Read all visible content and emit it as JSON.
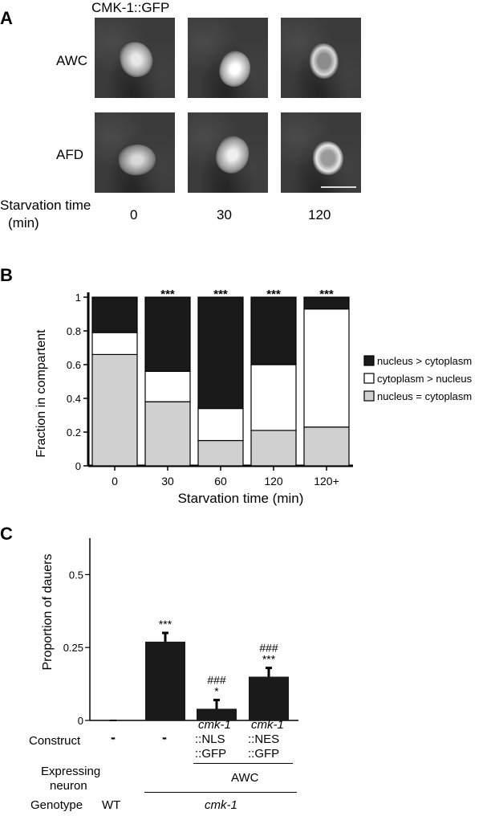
{
  "panel_a": {
    "letter": "A",
    "title": "CMK-1::GFP",
    "row_labels": [
      "AWC",
      "AFD"
    ],
    "time_label_line1": "Starvation time",
    "time_label_line2": "(min)",
    "times": [
      "0",
      "30",
      "120"
    ]
  },
  "panel_b": {
    "letter": "B",
    "chart_data": {
      "type": "bar",
      "stacked": true,
      "ylabel": "Fraction in compartent",
      "xlabel": "Starvation time (min)",
      "ylim": [
        0,
        1
      ],
      "yticks": [
        "0",
        "0.2",
        "0.4",
        "0.6",
        "0.8",
        "1"
      ],
      "categories": [
        "0",
        "30",
        "60",
        "120",
        "120+"
      ],
      "series": [
        {
          "name": "nucleus = cytoplasm",
          "color": "#d0d0d0",
          "values": [
            0.66,
            0.38,
            0.15,
            0.21,
            0.23
          ]
        },
        {
          "name": "cytoplasm > nucleus",
          "color": "#ffffff",
          "values": [
            0.13,
            0.18,
            0.19,
            0.39,
            0.7
          ]
        },
        {
          "name": "nucleus > cytoplasm",
          "color": "#1a1a1a",
          "values": [
            0.21,
            0.44,
            0.66,
            0.4,
            0.07
          ]
        }
      ],
      "significance": [
        "",
        "***",
        "***",
        "***",
        "***"
      ],
      "legend_position": "right"
    }
  },
  "panel_c": {
    "letter": "C",
    "chart_data": {
      "type": "bar",
      "ylabel": "Proportion of dauers",
      "ylim": [
        0,
        0.625
      ],
      "yticks": [
        "0",
        "0.25",
        "0.5"
      ],
      "values": [
        0.0,
        0.27,
        0.04,
        0.15
      ],
      "errors": [
        0.0,
        0.03,
        0.03,
        0.03
      ],
      "sig_top": [
        "",
        "",
        "###",
        "###"
      ],
      "sig_bottom": [
        "",
        "***",
        "*",
        "***"
      ]
    },
    "construct_label": "Construct",
    "constructs": [
      {
        "line1": "-",
        "line2": "",
        "line3": ""
      },
      {
        "line1": "-",
        "line2": "",
        "line3": ""
      },
      {
        "line1": "cmk-1",
        "line2": "::NLS",
        "line3": "::GFP"
      },
      {
        "line1": "cmk-1",
        "line2": "::NES",
        "line3": "::GFP"
      }
    ],
    "expressing_label_line1": "Expressing",
    "expressing_label_line2": "neuron",
    "expressing_value": "AWC",
    "genotype_label": "Genotype",
    "genotype_wt": "WT",
    "genotype_mutant": "cmk-1"
  }
}
